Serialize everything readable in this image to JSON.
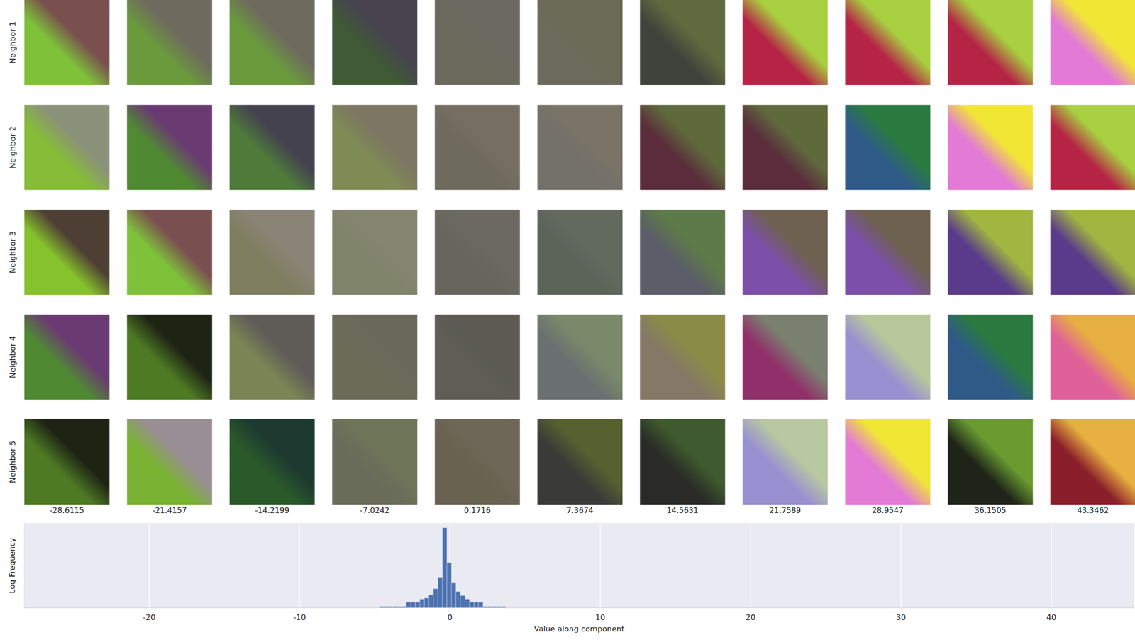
{
  "chart_data": {
    "type": "histogram",
    "x_label": "Value along component",
    "y_label": "Log Frequency",
    "bins": [
      -4.7,
      -4.4,
      -4.1,
      -3.8,
      -3.5,
      -3.2,
      -2.9,
      -2.6,
      -2.3,
      -2.0,
      -1.7,
      -1.4,
      -1.1,
      -0.8,
      -0.5,
      -0.2,
      0.1,
      0.4,
      0.7,
      1.0,
      1.3,
      1.6,
      1.9,
      2.2,
      2.5,
      2.8,
      3.1,
      3.4,
      3.7
    ],
    "counts": [
      1,
      1,
      1,
      1,
      1,
      1,
      2,
      2,
      2,
      3,
      4,
      7,
      19,
      130,
      500000,
      1500,
      49,
      12,
      6,
      3,
      2,
      2,
      2,
      1,
      1,
      1,
      1,
      1
    ],
    "color": "#4c72b0",
    "xlim": [
      -28.3,
      45.5
    ],
    "xticks": [
      -20,
      -10,
      0,
      10,
      20,
      30,
      40
    ],
    "ylim": [
      0.8,
      1000000
    ],
    "log": "y",
    "grid": true,
    "tick_labels": "x"
  },
  "patch_grid": {
    "row_labels": [
      "Neighbor 1",
      "Neighbor 2",
      "Neighbor 3",
      "Neighbor 4",
      "Neighbor 5"
    ],
    "column_values": [
      -28.6115,
      -21.4157,
      -14.2199,
      -7.0242,
      0.1716,
      7.3674,
      14.5631,
      21.7589,
      28.9547,
      36.1505,
      43.3462
    ],
    "patches": [
      [
        [
          "#7a4f4f",
          "#7fc23a"
        ],
        [
          "#6e6a5e",
          "#6a9a3c"
        ],
        [
          "#6e6a5e",
          "#6a9a3c"
        ],
        [
          "#47444f",
          "#3f5a35"
        ],
        [
          "#6c6a60",
          "#69695c"
        ],
        [
          "#6a6a55",
          "#6d6b5c"
        ],
        [
          "#5f6a3f",
          "#3e443c"
        ],
        [
          "#a8d040",
          "#b52445"
        ],
        [
          "#a8d040",
          "#b52445"
        ],
        [
          "#a8d040",
          "#b52445"
        ],
        [
          "#f2e635",
          "#e27ad6"
        ]
      ],
      [
        [
          "#8a9279",
          "#86bc38"
        ],
        [
          "#6a3a72",
          "#4f8a32"
        ],
        [
          "#45424f",
          "#4e7a3a"
        ],
        [
          "#7d7662",
          "#7f8a55"
        ],
        [
          "#766e61",
          "#6f6a5e"
        ],
        [
          "#7a7468",
          "#74706a"
        ],
        [
          "#5f6a3c",
          "#5a2c3c"
        ],
        [
          "#5f6a3c",
          "#5a2c3c"
        ],
        [
          "#2a7a40",
          "#2f5a88"
        ],
        [
          "#f2e635",
          "#e27ad6"
        ],
        [
          "#a8d040",
          "#b52445"
        ]
      ],
      [
        [
          "#4e3f35",
          "#86c22c"
        ],
        [
          "#7a4f4f",
          "#7fc23a"
        ],
        [
          "#8a8476",
          "#7f7e60"
        ],
        [
          "#858570",
          "#7f846a"
        ],
        [
          "#6c6a60",
          "#66665c"
        ],
        [
          "#626a60",
          "#5c6458"
        ],
        [
          "#5e7a48",
          "#5b5d68"
        ],
        [
          "#6e6150",
          "#7c4fa8"
        ],
        [
          "#6e6150",
          "#7c4fa8"
        ],
        [
          "#a2b540",
          "#5a3a8a"
        ],
        [
          "#a2b540",
          "#5a3a8a"
        ]
      ],
      [
        [
          "#6a3a72",
          "#4f8a32"
        ],
        [
          "#1e2414",
          "#4e7a24"
        ],
        [
          "#5f5c58",
          "#7a8454"
        ],
        [
          "#69695a",
          "#6a6c58"
        ],
        [
          "#5c5a52",
          "#5e5e55"
        ],
        [
          "#7a8a6a",
          "#6a6f70"
        ],
        [
          "#8a8c46",
          "#857866"
        ],
        [
          "#7a8070",
          "#90306a"
        ],
        [
          "#b8c89a",
          "#9890d0"
        ],
        [
          "#2a7a40",
          "#2f5a88"
        ],
        [
          "#e8b040",
          "#e0609a"
        ]
      ],
      [
        [
          "#1e2414",
          "#4e7a24"
        ],
        [
          "#9a8e96",
          "#7ab234"
        ],
        [
          "#1e3a30",
          "#2a5a2a"
        ],
        [
          "#6e7458",
          "#6a6c5a"
        ],
        [
          "#6e6656",
          "#6a6250"
        ],
        [
          "#556230",
          "#3a3a38"
        ],
        [
          "#3e5a2e",
          "#2a2a28"
        ],
        [
          "#b8c8a0",
          "#9890d0"
        ],
        [
          "#f2e635",
          "#e27ad6"
        ],
        [
          "#6a9a30",
          "#1e2418"
        ],
        [
          "#e8b040",
          "#8a1e2a"
        ]
      ]
    ]
  }
}
